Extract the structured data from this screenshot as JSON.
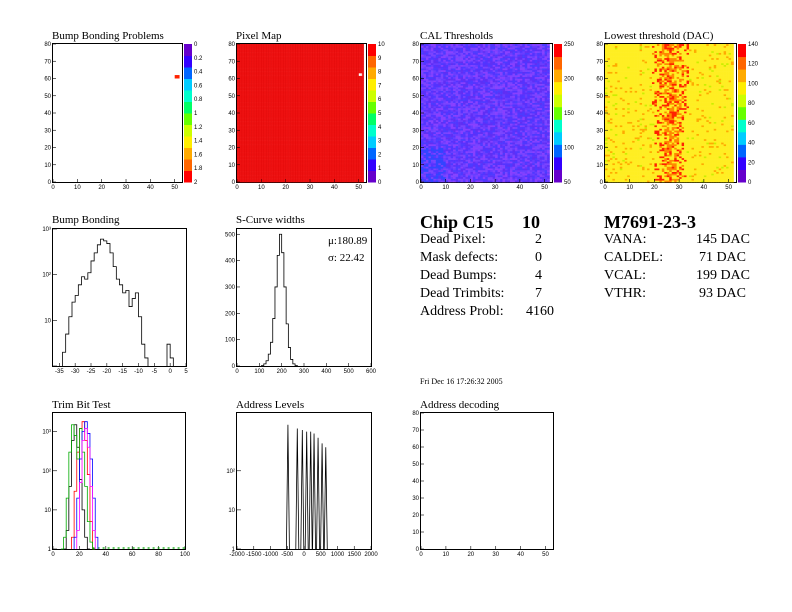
{
  "chart_data": [
    {
      "id": "bump-bonding-problems",
      "type": "heatmap",
      "title": "Bump Bonding Problems",
      "x_ticks": [
        "0",
        "10",
        "20",
        "30",
        "40",
        "50"
      ],
      "y_ticks": [
        "0",
        "10",
        "20",
        "30",
        "40",
        "50",
        "60",
        "70",
        "80"
      ],
      "palette_ticks": [
        "0",
        "0.2",
        "0.4",
        "0.6",
        "0.8",
        "1",
        "1.2",
        "1.4",
        "1.6",
        "1.8",
        "2"
      ],
      "hot_pixels": [
        {
          "x": 50,
          "y": 61,
          "value": 0.4
        }
      ]
    },
    {
      "id": "pixel-map",
      "type": "heatmap",
      "title": "Pixel Map",
      "x_ticks": [
        "0",
        "10",
        "20",
        "30",
        "40",
        "50"
      ],
      "y_ticks": [
        "0",
        "10",
        "20",
        "30",
        "40",
        "50",
        "60",
        "70",
        "80"
      ],
      "palette_ticks": [
        "0",
        "1",
        "2",
        "3",
        "4",
        "5",
        "6",
        "7",
        "8",
        "9",
        "10"
      ],
      "fill_value": 10,
      "cold_pixels": [
        {
          "x": 50,
          "y": 62,
          "value": 0
        }
      ]
    },
    {
      "id": "cal-thresholds",
      "type": "heatmap",
      "title": "CAL Thresholds",
      "x_ticks": [
        "0",
        "10",
        "20",
        "30",
        "40",
        "50"
      ],
      "y_ticks": [
        "0",
        "10",
        "20",
        "30",
        "40",
        "50",
        "60",
        "70",
        "80"
      ],
      "palette_ticks": [
        "50",
        "100",
        "150",
        "200",
        "250"
      ]
    },
    {
      "id": "lowest-threshold",
      "type": "heatmap",
      "title": "Lowest threshold (DAC)",
      "x_ticks": [
        "0",
        "10",
        "20",
        "30",
        "40",
        "50"
      ],
      "y_ticks": [
        "0",
        "10",
        "20",
        "30",
        "40",
        "50",
        "60",
        "70",
        "80"
      ],
      "palette_ticks": [
        "0",
        "20",
        "40",
        "60",
        "80",
        "100",
        "120",
        "140"
      ]
    },
    {
      "id": "bump-bonding",
      "type": "line",
      "title": "Bump Bonding",
      "y_scale": "log",
      "xlim": [
        -37,
        5
      ],
      "ylim": [
        1,
        1000
      ],
      "x_ticks": [
        "-35",
        "-30",
        "-25",
        "-20",
        "-15",
        "-10",
        "-5",
        "0",
        "5"
      ],
      "y_ticks": [
        {
          "v": 1,
          "label": ""
        },
        {
          "v": 10,
          "label": "10"
        },
        {
          "v": 100,
          "label": "10²"
        },
        {
          "v": 1000,
          "label": "10³"
        }
      ],
      "x": [
        -34,
        -33,
        -32,
        -31,
        -30,
        -29,
        -28,
        -27,
        -26,
        -25,
        -24,
        -23,
        -22,
        -21,
        -20,
        -19,
        -18,
        -17,
        -16,
        -15,
        -14,
        -13,
        -12,
        -11,
        -10,
        -9,
        -8,
        -1,
        0
      ],
      "y": [
        2,
        5,
        12,
        25,
        35,
        60,
        90,
        80,
        110,
        200,
        300,
        450,
        600,
        550,
        480,
        300,
        150,
        80,
        60,
        40,
        45,
        20,
        30,
        40,
        12,
        3,
        1.5,
        3,
        1.5
      ]
    },
    {
      "id": "s-curve-widths",
      "type": "line",
      "title": "S-Curve widths",
      "xlim": [
        0,
        600
      ],
      "ylim": [
        0,
        520
      ],
      "x_ticks": [
        "0",
        "100",
        "200",
        "300",
        "400",
        "500",
        "600"
      ],
      "y_ticks": [
        "0",
        "100",
        "200",
        "300",
        "400",
        "500"
      ],
      "x": [
        110,
        120,
        130,
        140,
        150,
        160,
        170,
        180,
        190,
        200,
        210,
        220,
        230,
        240,
        250,
        260
      ],
      "y": [
        2,
        8,
        20,
        45,
        90,
        180,
        300,
        420,
        500,
        430,
        300,
        160,
        70,
        25,
        8,
        2
      ],
      "stats": {
        "mean": "μ:180.89",
        "sigma": "σ: 22.42"
      }
    },
    {
      "id": "trim-bit-test",
      "type": "line",
      "title": "Trim Bit Test",
      "y_scale": "log",
      "xlim": [
        0,
        100
      ],
      "ylim": [
        1,
        3000
      ],
      "x_ticks": [
        "0",
        "20",
        "40",
        "60",
        "80",
        "100"
      ],
      "y_ticks": [
        {
          "v": 1,
          "label": "1"
        },
        {
          "v": 10,
          "label": "10"
        },
        {
          "v": 100,
          "label": "10²"
        },
        {
          "v": 1000,
          "label": "10³"
        }
      ],
      "series": [
        {
          "color": "#000000",
          "x": [
            8,
            10,
            12,
            14,
            16,
            18,
            20,
            22,
            24,
            26
          ],
          "y": [
            1,
            3,
            40,
            600,
            1500,
            400,
            60,
            10,
            2,
            1
          ]
        },
        {
          "color": "#ff0000",
          "x": [
            14,
            16,
            18,
            20,
            22,
            24,
            26,
            28,
            30
          ],
          "y": [
            2,
            30,
            300,
            1200,
            1800,
            600,
            80,
            5,
            1
          ]
        },
        {
          "color": "#00aa00",
          "x": [
            6,
            8,
            10,
            12,
            14,
            16,
            18,
            20,
            22,
            24,
            26,
            28,
            30,
            40,
            50,
            60,
            70,
            80,
            90,
            100
          ],
          "y": [
            1,
            2,
            20,
            300,
            1500,
            800,
            200,
            1200,
            300,
            40,
            5,
            1.5,
            1,
            1,
            1,
            1,
            1,
            1,
            1,
            1
          ]
        },
        {
          "color": "#0000ff",
          "x": [
            16,
            18,
            20,
            22,
            24,
            26,
            28,
            30,
            32
          ],
          "y": [
            2,
            20,
            200,
            1000,
            1800,
            900,
            200,
            20,
            2
          ]
        },
        {
          "color": "#ff00ff",
          "x": [
            18,
            20,
            22,
            24,
            26,
            28,
            30
          ],
          "y": [
            3,
            50,
            600,
            1200,
            400,
            40,
            3
          ]
        }
      ]
    },
    {
      "id": "address-levels",
      "type": "bar",
      "title": "Address Levels",
      "y_scale": "log",
      "xlim": [
        -2000,
        2000
      ],
      "ylim": [
        1,
        3000
      ],
      "x_ticks": [
        "-2000",
        "-1500",
        "-1000",
        "-500",
        "0",
        "500",
        "1000",
        "1500",
        "2000"
      ],
      "y_ticks": [
        {
          "v": 1,
          "label": "1"
        },
        {
          "v": 10,
          "label": "10"
        },
        {
          "v": 100,
          "label": "10²"
        }
      ],
      "x": [
        -480,
        -200,
        -50,
        80,
        200,
        300,
        420,
        540,
        650
      ],
      "y": [
        1500,
        1200,
        1100,
        1000,
        1000,
        900,
        700,
        500,
        400
      ]
    },
    {
      "id": "address-decoding",
      "type": "heatmap",
      "title": "Address decoding",
      "x_ticks": [
        "0",
        "10",
        "20",
        "30",
        "40",
        "50"
      ],
      "y_ticks": [
        "0",
        "10",
        "20",
        "30",
        "40",
        "50",
        "60",
        "70",
        "80"
      ]
    }
  ],
  "chip_summary": {
    "chip_label": "Chip C15",
    "chip_number": "10",
    "rows": [
      {
        "label": "Dead Pixel:",
        "value": "2"
      },
      {
        "label": "Mask defects:",
        "value": "0"
      },
      {
        "label": "Dead Bumps:",
        "value": "4"
      },
      {
        "label": "Dead Trimbits:",
        "value": "7"
      },
      {
        "label": "Address Probl:",
        "value": "4160"
      }
    ],
    "date": "Fri Dec 16 17:26:32 2005"
  },
  "module_summary": {
    "module_id": "M7691-23-3",
    "rows": [
      {
        "label": "VANA:",
        "value": "145 DAC"
      },
      {
        "label": "CALDEL:",
        "value": "71 DAC"
      },
      {
        "label": "VCAL:",
        "value": "199 DAC"
      },
      {
        "label": "VTHR:",
        "value": "93 DAC"
      }
    ]
  }
}
